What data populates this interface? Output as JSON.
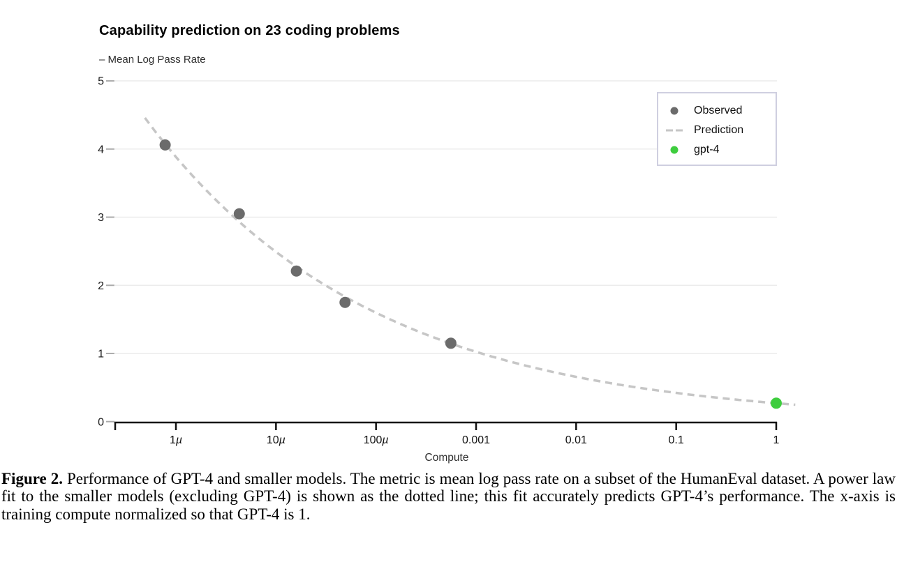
{
  "figure": {
    "title": "Capability prediction on 23 coding problems",
    "y_axis_title": "– Mean Log Pass Rate",
    "x_axis_title": "Compute"
  },
  "legend": {
    "items": [
      {
        "label": "Observed",
        "marker": "dot",
        "color": "#6b6b6b"
      },
      {
        "label": "Prediction",
        "marker": "dashed-line",
        "color": "#c6c6c6"
      },
      {
        "label": "gpt-4",
        "marker": "dot",
        "color": "#3ecd3e"
      }
    ]
  },
  "caption": {
    "label": "Figure 2.",
    "text": " Performance of GPT-4 and smaller models. The metric is mean log pass rate on a subset of the HumanEval dataset. A power law fit to the smaller models (excluding GPT-4) is shown as the dotted line; this fit accurately predicts GPT-4’s performance. The x-axis is training compute normalized so that GPT-4 is 1."
  },
  "chart_data": {
    "type": "scatter",
    "title": "Capability prediction on 23 coding problems",
    "xlabel": "Compute",
    "ylabel": "Mean Log Pass Rate",
    "x_scale": "log",
    "xlim": [
      2.5e-07,
      1.0
    ],
    "ylim": [
      0,
      5
    ],
    "grid": "horizontal",
    "legend_position": "top-right",
    "y_ticks": [
      0,
      1,
      2,
      3,
      4,
      5
    ],
    "x_ticks": [
      {
        "value": 1e-06,
        "label": "1µ"
      },
      {
        "value": 1e-05,
        "label": "10µ"
      },
      {
        "value": 0.0001,
        "label": "100µ"
      },
      {
        "value": 0.001,
        "label": "0.001"
      },
      {
        "value": 0.01,
        "label": "0.01"
      },
      {
        "value": 0.1,
        "label": "0.1"
      },
      {
        "value": 1,
        "label": "1"
      }
    ],
    "series": [
      {
        "name": "Observed",
        "type": "scatter",
        "color": "#6b6b6b",
        "marker_radius": 8,
        "points": [
          [
            7.8e-07,
            4.06
          ],
          [
            4.3e-06,
            3.05
          ],
          [
            1.6e-05,
            2.21
          ],
          [
            4.9e-05,
            1.75
          ],
          [
            0.00056,
            1.15
          ]
        ]
      },
      {
        "name": "Prediction",
        "type": "line",
        "style": "dashed",
        "color": "#c6c6c6",
        "power_law": {
          "coefficient": 0.27,
          "exponent": -0.193
        },
        "x_range": [
          4.9e-07,
          1.55
        ]
      },
      {
        "name": "gpt-4",
        "type": "scatter",
        "color": "#3ecd3e",
        "marker_radius": 8,
        "points": [
          [
            1,
            0.27
          ]
        ]
      }
    ]
  }
}
